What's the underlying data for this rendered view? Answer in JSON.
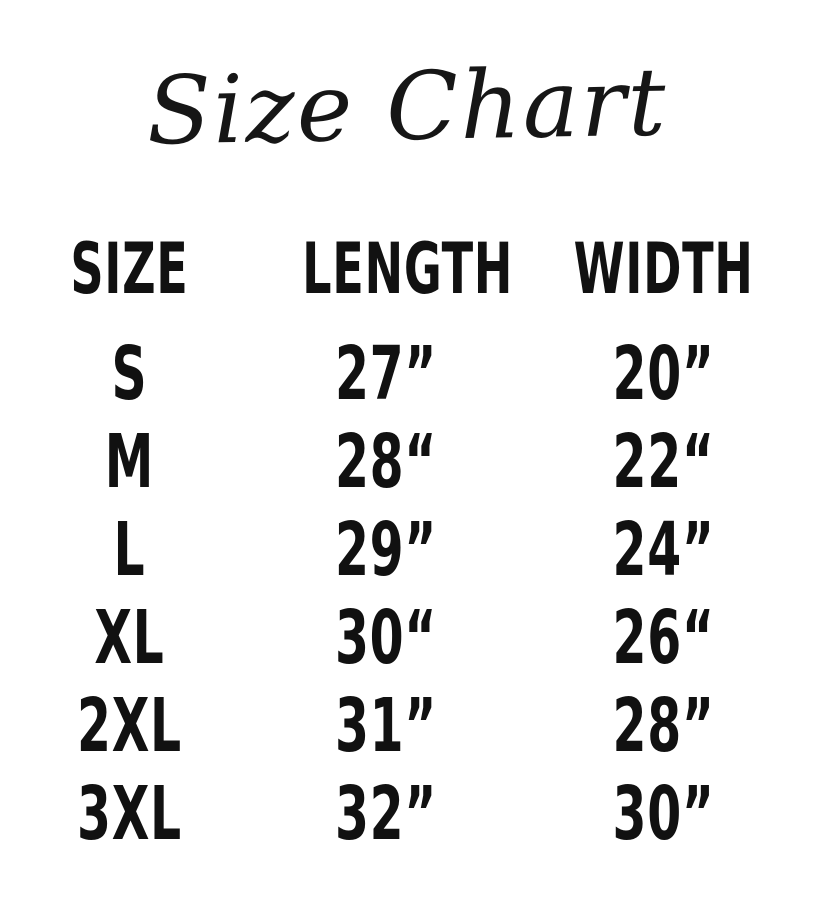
{
  "title": "Size Chart",
  "chart_data": {
    "type": "table",
    "title": "Size Chart",
    "columns": [
      "SIZE",
      "LENGTH",
      "WIDTH"
    ],
    "rows": [
      {
        "size": "S",
        "length": "27”",
        "width": "20”"
      },
      {
        "size": "M",
        "length": "28“",
        "width": "22“"
      },
      {
        "size": "L",
        "length": "29”",
        "width": "24”"
      },
      {
        "size": "XL",
        "length": "30“",
        "width": "26“"
      },
      {
        "size": "2XL",
        "length": "31”",
        "width": "28”"
      },
      {
        "size": "3XL",
        "length": "32”",
        "width": "30”"
      }
    ],
    "units": "inches",
    "layout": {
      "grid": "off",
      "header_row": true,
      "text_color": "#111111",
      "background_color": "#ffffff"
    }
  }
}
